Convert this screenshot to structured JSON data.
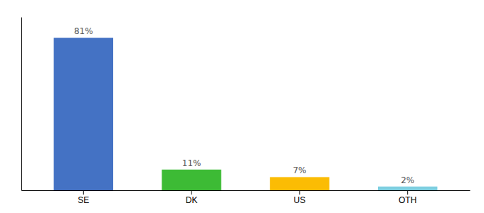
{
  "chart_data": {
    "type": "bar",
    "categories": [
      "SE",
      "DK",
      "US",
      "OTH"
    ],
    "values": [
      81,
      11,
      7,
      2
    ],
    "value_labels": [
      "81%",
      "11%",
      "7%",
      "2%"
    ],
    "colors": [
      "#4472c4",
      "#3dbb35",
      "#fbbc04",
      "#7ecfe0"
    ],
    "ylim": [
      0,
      92
    ],
    "data_labels": true,
    "tick_labels": "x"
  }
}
